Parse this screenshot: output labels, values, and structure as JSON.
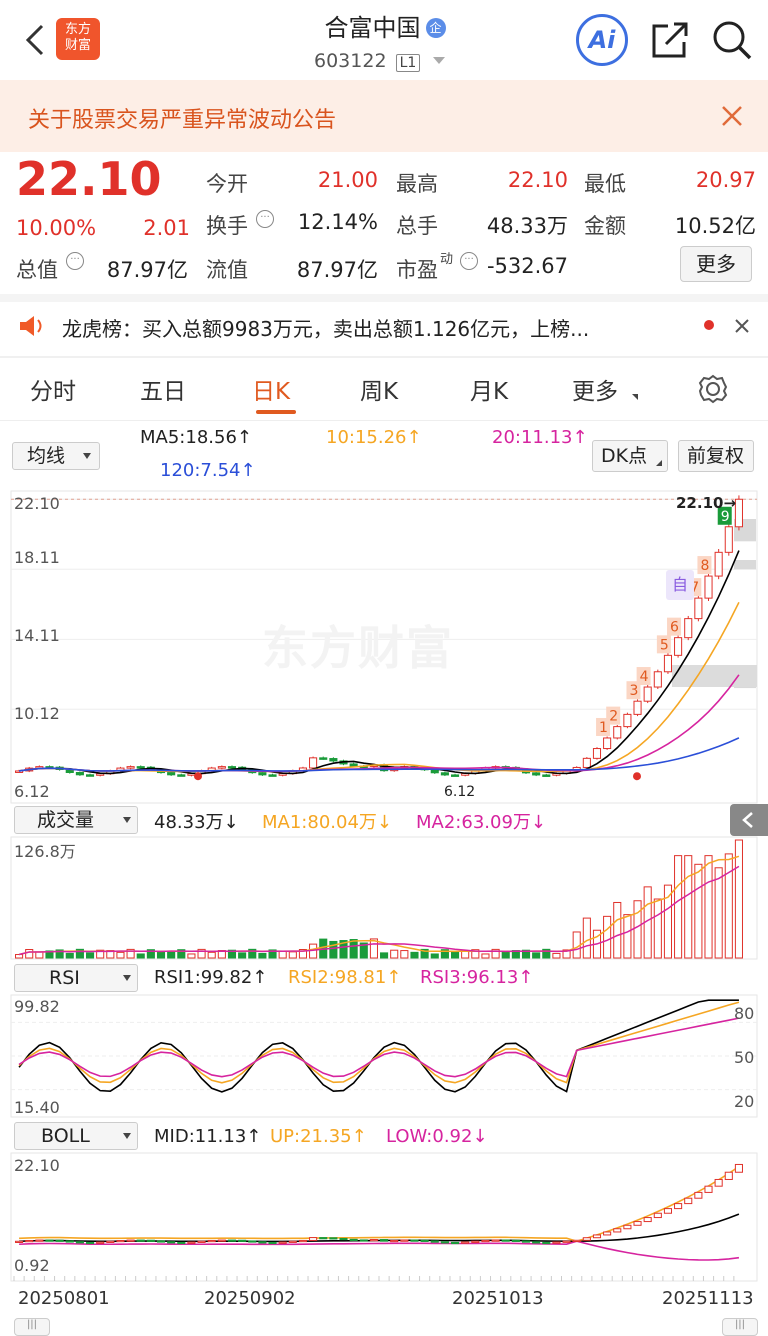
{
  "header": {
    "title": "合富中国",
    "code": "603122",
    "market_badge": "L1",
    "corp_badge": "企",
    "logo_text_1": "东方",
    "logo_text_2": "财富"
  },
  "notice": {
    "text": "关于股票交易严重异常波动公告"
  },
  "quote": {
    "price": "22.10",
    "change_pct": "10.00%",
    "change": "2.01",
    "fields": [
      {
        "label": "今开",
        "value": "21.00",
        "color": "red"
      },
      {
        "label": "最高",
        "value": "22.10",
        "color": "red"
      },
      {
        "label": "最低",
        "value": "20.97",
        "color": "red"
      },
      {
        "label": "换手",
        "value": "12.14%",
        "color": "black"
      },
      {
        "label": "总手",
        "value": "48.33万",
        "color": "black"
      },
      {
        "label": "金额",
        "value": "10.52亿",
        "color": "black"
      },
      {
        "label": "总值",
        "value": "87.97亿",
        "color": "black"
      },
      {
        "label": "流值",
        "value": "87.97亿",
        "color": "black"
      },
      {
        "label": "市盈",
        "value": "-532.67",
        "color": "black"
      }
    ],
    "pe_super": "动",
    "more_button": "更多"
  },
  "dragon": {
    "text": "龙虎榜：买入总额9983万元，卖出总额1.126亿元，上榜..."
  },
  "tabs": [
    "分时",
    "五日",
    "日K",
    "周K",
    "月K",
    "更多"
  ],
  "active_tab": "日K",
  "ma_bar": {
    "selector": "均线",
    "ma5": "MA5:18.56↑",
    "ma10": "10:15.26↑",
    "ma20": "20:11.13↑",
    "ma120": "120:7.54↑",
    "dk_button": "DK点",
    "fq_button": "前复权"
  },
  "kline": {
    "y_labels": [
      "22.10",
      "18.11",
      "14.11",
      "10.12",
      "6.12"
    ],
    "last_price_tag": "22.10→",
    "low_tag": "6.12",
    "watermark": "东方财富",
    "auto_tag": "自"
  },
  "volume": {
    "selector": "成交量",
    "value": "48.33万↓",
    "ma1": "MA1:80.04万↓",
    "ma2": "MA2:63.09万↓",
    "max_label": "126.8万"
  },
  "rsi": {
    "selector": "RSI",
    "rsi1": "RSI1:99.82↑",
    "rsi2": "RSI2:98.81↑",
    "rsi3": "RSI3:96.13↑",
    "top": "99.82",
    "bottom": "15.40",
    "l80": "80",
    "l50": "50",
    "l20": "20"
  },
  "boll": {
    "selector": "BOLL",
    "mid": "MID:11.13↑",
    "up": "UP:21.35↑",
    "low": "LOW:0.92↓",
    "top": "22.10",
    "bottom": "0.92"
  },
  "dates": [
    "20250801",
    "20250902",
    "20251013",
    "20251113"
  ],
  "colors": {
    "up": "#e0312a",
    "down": "#1a9b3a",
    "ma5": "#000000",
    "ma10": "#f5a623",
    "ma20": "#d6249f",
    "ma120": "#2b4fd8"
  }
}
